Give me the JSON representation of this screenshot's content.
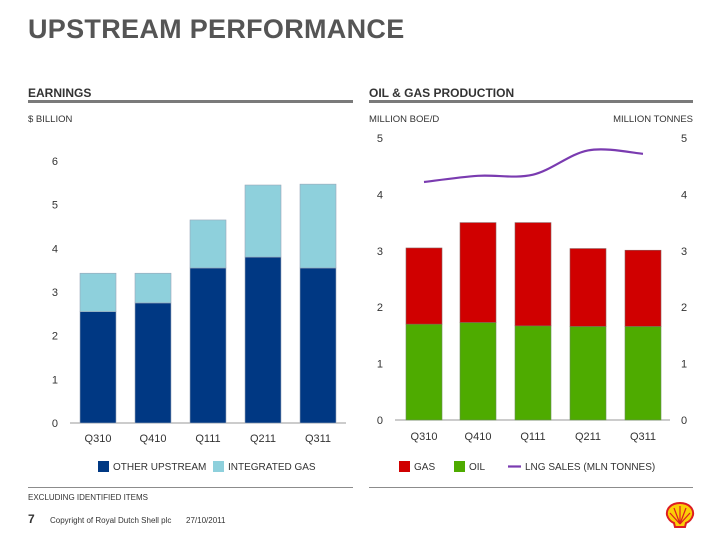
{
  "page_title": "UPSTREAM PERFORMANCE",
  "earnings": {
    "title": "EARNINGS",
    "unit": "$ BILLION"
  },
  "production": {
    "title": "OIL & GAS PRODUCTION",
    "left_unit": "MILLION BOE/D",
    "right_unit": "MILLION TONNES"
  },
  "footer": {
    "note": "EXCLUDING IDENTIFIED ITEMS",
    "page_number": "7",
    "copyright": "Copyright of Royal Dutch Shell plc",
    "date": "27/10/2011"
  },
  "colors": {
    "other_upstream": "#003883",
    "integrated_gas": "#8ed0dc",
    "gas": "#d00000",
    "oil": "#4eab00",
    "lng": "#7a3bb0",
    "logo_red": "#dd1d21",
    "logo_yellow": "#fbce07"
  },
  "logo_icon": "shell-pecten-icon",
  "chart_data": [
    {
      "type": "bar",
      "stacked": true,
      "title": "EARNINGS",
      "ylabel": "$ BILLION",
      "categories": [
        "Q310",
        "Q410",
        "Q111",
        "Q211",
        "Q311"
      ],
      "series": [
        {
          "name": "OTHER UPSTREAM",
          "values": [
            2.55,
            2.75,
            3.55,
            3.8,
            3.55
          ]
        },
        {
          "name": "INTEGRATED GAS",
          "values": [
            0.88,
            0.68,
            1.1,
            1.65,
            1.92
          ]
        }
      ],
      "ylim": [
        0,
        6
      ],
      "yticks": [
        0,
        1,
        2,
        3,
        4,
        5,
        6
      ],
      "grid": false,
      "legend": "bottom"
    },
    {
      "type": "bar",
      "stacked": true,
      "title": "OIL & GAS PRODUCTION",
      "ylabel": "MILLION BOE/D",
      "y2label": "MILLION TONNES",
      "categories": [
        "Q310",
        "Q410",
        "Q111",
        "Q211",
        "Q311"
      ],
      "series": [
        {
          "name": "OIL",
          "values": [
            1.7,
            1.73,
            1.67,
            1.66,
            1.66
          ]
        },
        {
          "name": "GAS",
          "values": [
            1.35,
            1.77,
            1.83,
            1.38,
            1.35
          ]
        },
        {
          "name": "LNG SALES (MLN TONNES)",
          "type": "line",
          "axis": "right",
          "values": [
            4.22,
            4.33,
            4.35,
            4.78,
            4.72
          ]
        }
      ],
      "legend_order": [
        "GAS",
        "OIL",
        "LNG SALES (MLN TONNES)"
      ],
      "ylim": [
        0,
        5
      ],
      "y2lim": [
        0,
        5
      ],
      "yticks": [
        0,
        1,
        2,
        3,
        4,
        5
      ],
      "grid": false,
      "legend": "bottom"
    }
  ]
}
